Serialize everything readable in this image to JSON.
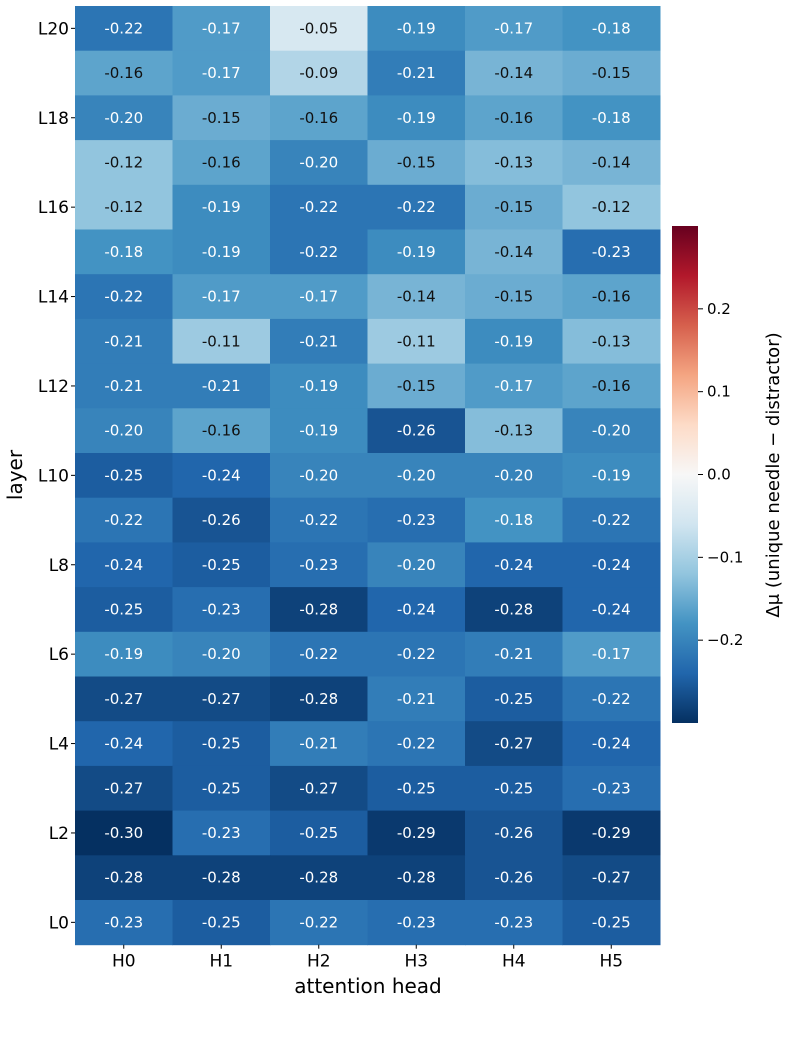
{
  "chart_data": {
    "type": "heatmap",
    "title": "",
    "xlabel": "attention head",
    "ylabel": "layer",
    "x_ticklabels": [
      "H0",
      "H1",
      "H2",
      "H3",
      "H4",
      "H5"
    ],
    "rows": [
      {
        "row_label": "L20",
        "values": [
          -0.22,
          -0.17,
          -0.05,
          -0.19,
          -0.17,
          -0.18
        ]
      },
      {
        "row_label": "",
        "values": [
          -0.16,
          -0.17,
          -0.09,
          -0.21,
          -0.14,
          -0.15
        ]
      },
      {
        "row_label": "L18",
        "values": [
          -0.2,
          -0.15,
          -0.16,
          -0.19,
          -0.16,
          -0.18
        ]
      },
      {
        "row_label": "",
        "values": [
          -0.12,
          -0.16,
          -0.2,
          -0.15,
          -0.13,
          -0.14
        ]
      },
      {
        "row_label": "L16",
        "values": [
          -0.12,
          -0.19,
          -0.22,
          -0.22,
          -0.15,
          -0.12
        ]
      },
      {
        "row_label": "",
        "values": [
          -0.18,
          -0.19,
          -0.22,
          -0.19,
          -0.14,
          -0.23
        ]
      },
      {
        "row_label": "L14",
        "values": [
          -0.22,
          -0.17,
          -0.17,
          -0.14,
          -0.15,
          -0.16
        ]
      },
      {
        "row_label": "",
        "values": [
          -0.21,
          -0.11,
          -0.21,
          -0.11,
          -0.19,
          -0.13
        ]
      },
      {
        "row_label": "L12",
        "values": [
          -0.21,
          -0.21,
          -0.19,
          -0.15,
          -0.17,
          -0.16
        ]
      },
      {
        "row_label": "",
        "values": [
          -0.2,
          -0.16,
          -0.19,
          -0.26,
          -0.13,
          -0.2
        ]
      },
      {
        "row_label": "L10",
        "values": [
          -0.25,
          -0.24,
          -0.2,
          -0.2,
          -0.2,
          -0.19
        ]
      },
      {
        "row_label": "",
        "values": [
          -0.22,
          -0.26,
          -0.22,
          -0.23,
          -0.18,
          -0.22
        ]
      },
      {
        "row_label": "L8",
        "values": [
          -0.24,
          -0.25,
          -0.23,
          -0.2,
          -0.24,
          -0.24
        ]
      },
      {
        "row_label": "",
        "values": [
          -0.25,
          -0.23,
          -0.28,
          -0.24,
          -0.28,
          -0.24
        ]
      },
      {
        "row_label": "L6",
        "values": [
          -0.19,
          -0.2,
          -0.22,
          -0.22,
          -0.21,
          -0.17
        ]
      },
      {
        "row_label": "",
        "values": [
          -0.27,
          -0.27,
          -0.28,
          -0.21,
          -0.25,
          -0.22
        ]
      },
      {
        "row_label": "L4",
        "values": [
          -0.24,
          -0.25,
          -0.21,
          -0.22,
          -0.27,
          -0.24
        ]
      },
      {
        "row_label": "",
        "values": [
          -0.27,
          -0.25,
          -0.27,
          -0.25,
          -0.25,
          -0.23
        ]
      },
      {
        "row_label": "L2",
        "values": [
          -0.3,
          -0.23,
          -0.25,
          -0.29,
          -0.26,
          -0.29
        ]
      },
      {
        "row_label": "",
        "values": [
          -0.28,
          -0.28,
          -0.28,
          -0.28,
          -0.26,
          -0.27
        ]
      },
      {
        "row_label": "L0",
        "values": [
          -0.23,
          -0.25,
          -0.22,
          -0.23,
          -0.23,
          -0.25
        ]
      }
    ],
    "colorbar": {
      "label": "Δμ (unique needle − distractor)",
      "colormap": "RdBu_r",
      "range": [
        -0.3,
        0.3
      ],
      "ticks": [
        0.2,
        0.1,
        0.0,
        -0.1,
        -0.2
      ],
      "tick_labels": [
        "0.2",
        "0.1",
        "0.0",
        "−0.1",
        "−0.2"
      ]
    },
    "grid": false,
    "annotations": "cell values printed with two decimals"
  }
}
